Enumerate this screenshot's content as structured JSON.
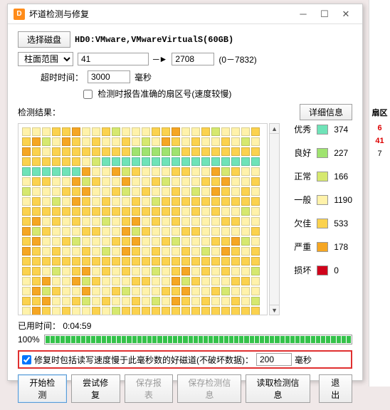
{
  "window": {
    "title": "坏道检测与修复",
    "icon_letter": "D"
  },
  "toolbar": {
    "select_disk": "选择磁盘",
    "disk_label": "HD0:VMware,VMwareVirtualS(60GB)"
  },
  "range": {
    "mode_label": "柱面范围",
    "from": "41",
    "to": "2708",
    "hint": "(0－7832)"
  },
  "timeout": {
    "label": "超时时间：",
    "value": "3000",
    "unit": "毫秒"
  },
  "report_cb": {
    "label": "检测时报告准确的扇区号(速度较慢)",
    "checked": false
  },
  "results_label": "检测结果：",
  "detail_btn": "详细信息",
  "legend": [
    {
      "label": "优秀",
      "color": "#6fe3b8",
      "count": 374
    },
    {
      "label": "良好",
      "color": "#9fe36f",
      "count": 227
    },
    {
      "label": "正常",
      "color": "#d6e86f",
      "count": 166
    },
    {
      "label": "一般",
      "color": "#fff2aa",
      "count": 1190
    },
    {
      "label": "欠佳",
      "color": "#fbd24e",
      "count": 533
    },
    {
      "label": "严重",
      "color": "#f5a623",
      "count": 178
    },
    {
      "label": "损坏",
      "color": "#d0021b",
      "count": 0
    }
  ],
  "grid": {
    "rows": 19,
    "cols": 26,
    "colors": {
      "excellent": "#6fe3b8",
      "good": "#9fe36f",
      "normal": "#d6e86f",
      "fair": "#fff2aa",
      "poor": "#fbd24e",
      "severe": "#f5a623"
    }
  },
  "elapsed": {
    "label": "已用时间：",
    "value": "0:04:59"
  },
  "progress": {
    "percent_label": "100%",
    "segments": 60
  },
  "repair_opt": {
    "checked": true,
    "label": "修复时包括读写速度慢于此毫秒数的好磁道(不破坏数据)：",
    "value": "200",
    "unit": "毫秒"
  },
  "buttons": {
    "start": "开始检测",
    "try_repair": "尝试修复",
    "save_report": "保存报表",
    "save_info": "保存检测信息",
    "load_info": "读取检测信息",
    "exit": "退出"
  },
  "right_panel": {
    "header": "扇区",
    "v1": "6",
    "v2": "41",
    "v3": "7"
  }
}
